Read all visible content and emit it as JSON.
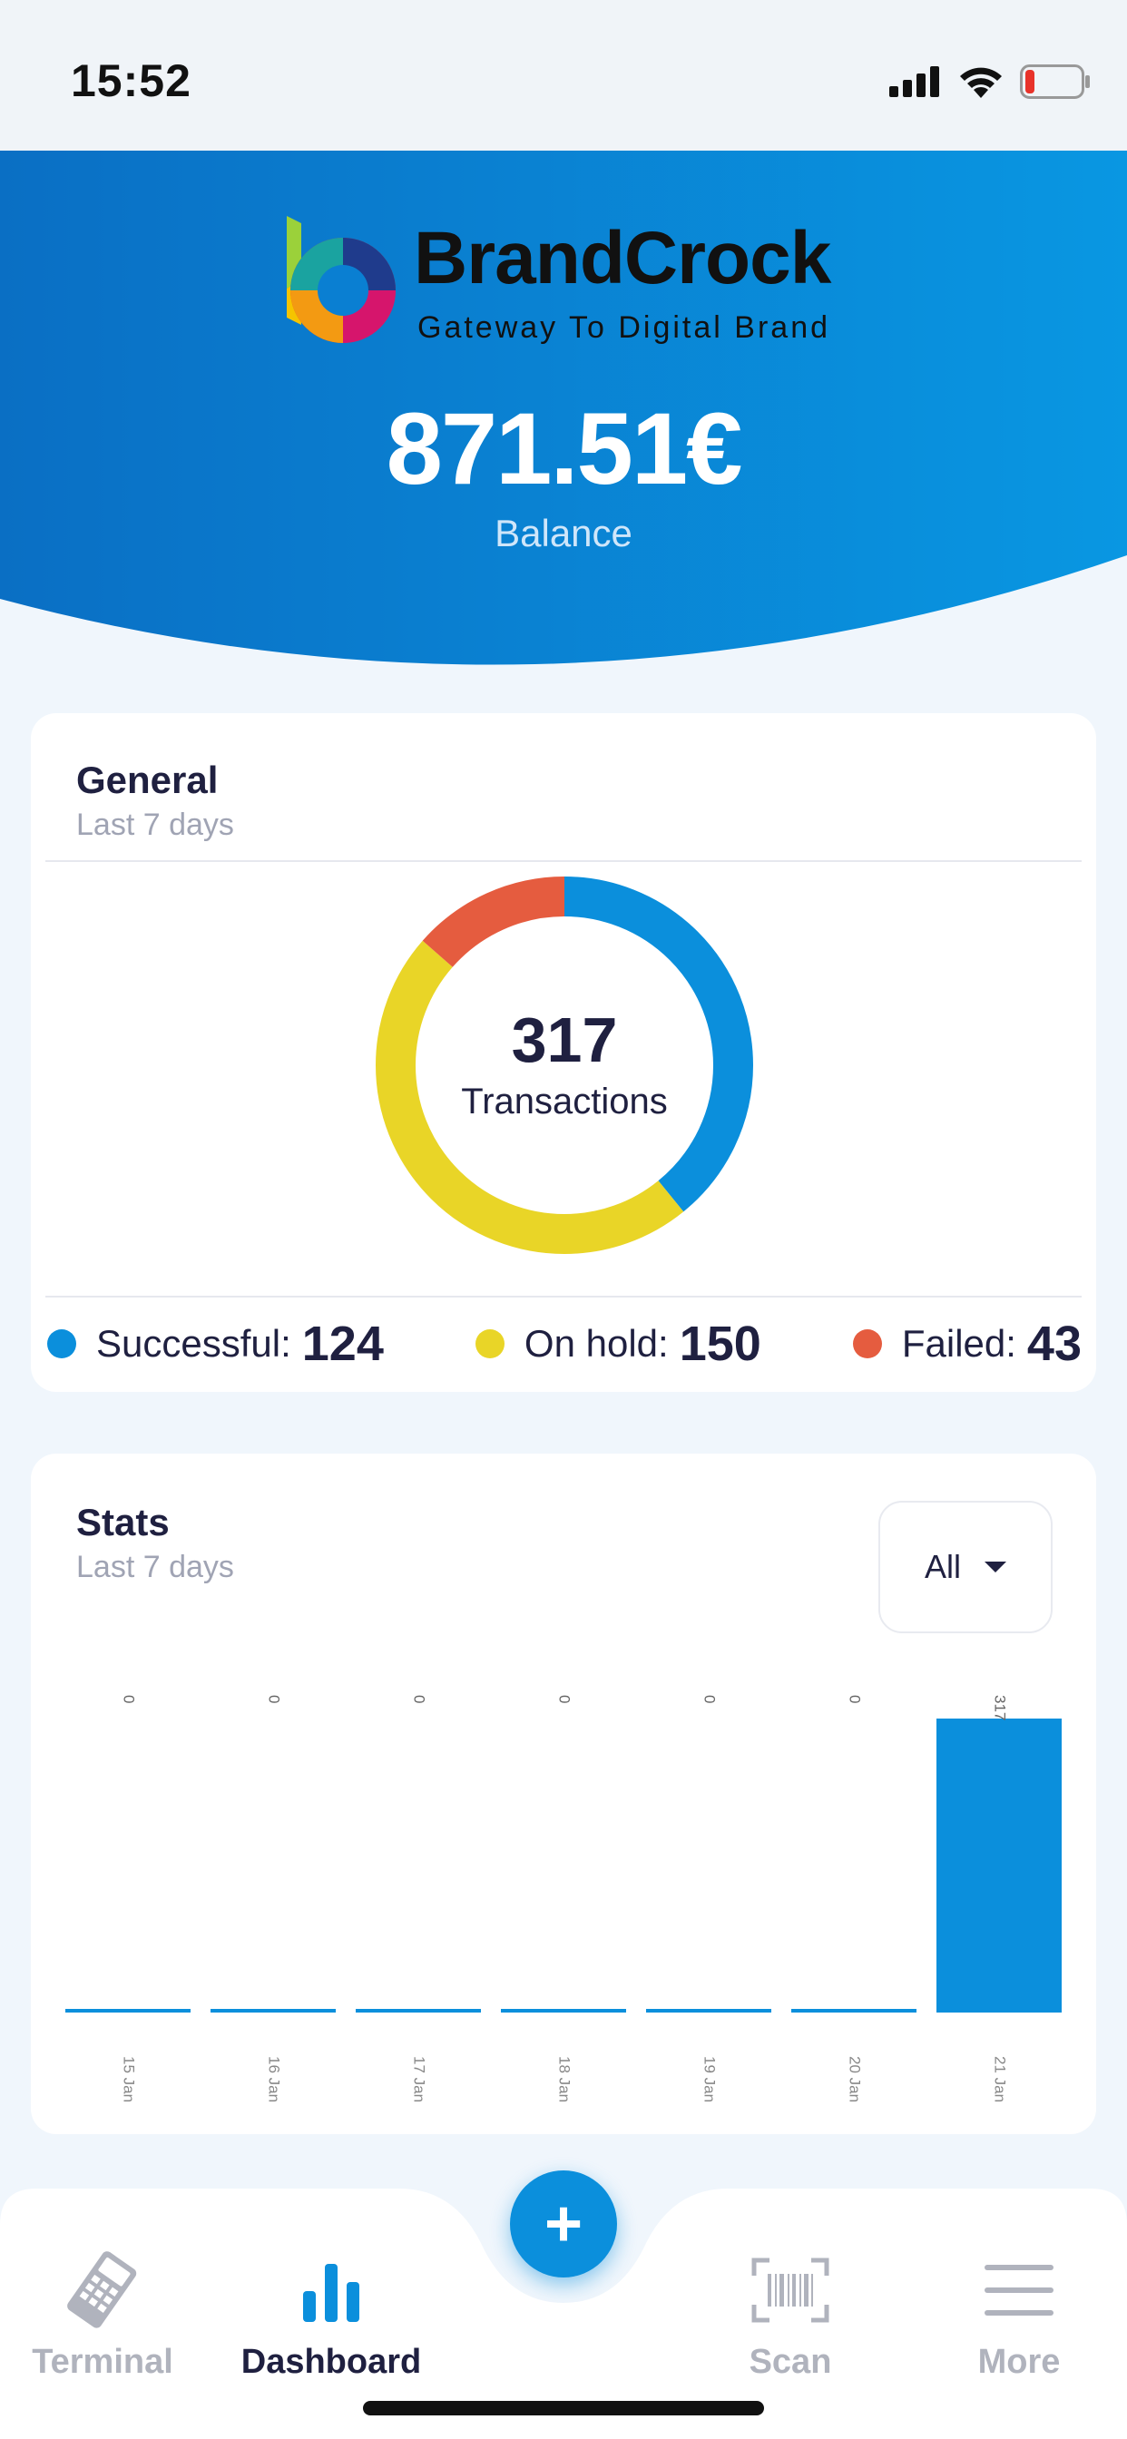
{
  "status": {
    "time": "15:52"
  },
  "header": {
    "brand_name": "BrandCrock",
    "brand_tagline": "Gateway To Digital Brand",
    "balance": "871.51€",
    "balance_label": "Balance",
    "colors": {
      "gradient_start": "#0a72c6",
      "gradient_end": "#0a95e0"
    }
  },
  "general": {
    "title": "General",
    "subtitle": "Last 7 days",
    "total": "317",
    "total_label": "Transactions",
    "legend": [
      {
        "label": "Successful:",
        "value": "124",
        "color": "#0b8fdc"
      },
      {
        "label": "On hold:",
        "value": "150",
        "color": "#e9d527"
      },
      {
        "label": "Failed:",
        "value": "43",
        "color": "#e55c3f"
      }
    ],
    "chart_data": {
      "type": "pie",
      "categories": [
        "Successful",
        "On hold",
        "Failed"
      ],
      "values": [
        124,
        150,
        43
      ]
    }
  },
  "stats": {
    "title": "Stats",
    "subtitle": "Last 7 days",
    "filter_value": "All",
    "chart_data": {
      "type": "bar",
      "categories": [
        "15 Jan",
        "16 Jan",
        "17 Jan",
        "18 Jan",
        "19 Jan",
        "20 Jan",
        "21 Jan"
      ],
      "values": [
        0,
        0,
        0,
        0,
        0,
        0,
        317
      ],
      "ylim": [
        0,
        317
      ]
    }
  },
  "tabbar": {
    "fab_label": "+",
    "tabs": [
      {
        "label": "Terminal",
        "icon": "terminal-icon",
        "active": false
      },
      {
        "label": "Dashboard",
        "icon": "bar-chart-icon",
        "active": true
      },
      {
        "label": "Scan",
        "icon": "barcode-scan-icon",
        "active": false
      },
      {
        "label": "More",
        "icon": "menu-icon",
        "active": false
      }
    ]
  },
  "colors": {
    "accent": "#0b8fdc",
    "text": "#1f2040",
    "muted": "#a0a4b4"
  }
}
